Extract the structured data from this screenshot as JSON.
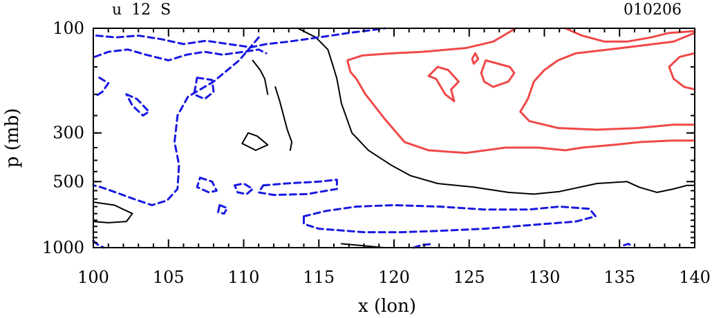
{
  "chart_data": {
    "type": "contour",
    "title_left": "u  12  S",
    "title_right": "010206",
    "xlabel": "x (lon)",
    "ylabel": "p (mb)",
    "xlim": [
      100,
      140
    ],
    "ylim": [
      1000,
      100
    ],
    "y_scale": "log",
    "x_ticks": [
      "100",
      "105",
      "110",
      "115",
      "120",
      "125",
      "130",
      "135",
      "140"
    ],
    "x_tick_values": [
      100,
      105,
      110,
      115,
      120,
      125,
      130,
      135,
      140
    ],
    "y_ticks": [
      "100",
      "300",
      "500",
      "1000"
    ],
    "y_tick_values": [
      100,
      300,
      500,
      1000
    ],
    "grid": false,
    "colors": {
      "positive": "#f04848",
      "zero": "#000000",
      "negative": "#1818e0"
    },
    "contours": [
      {
        "name": "zero",
        "color": "#000000",
        "dashed": false,
        "width": 2,
        "points": [
          [
            113.6,
            100
          ],
          [
            114.8,
            110
          ],
          [
            115.6,
            125
          ],
          [
            115.9,
            145
          ],
          [
            116.2,
            170
          ],
          [
            116.5,
            220
          ],
          [
            117.2,
            300
          ],
          [
            118.3,
            360
          ],
          [
            119.8,
            420
          ],
          [
            121.1,
            470
          ],
          [
            122.9,
            510
          ],
          [
            125.3,
            530
          ],
          [
            127.6,
            560
          ],
          [
            129.3,
            570
          ],
          [
            131,
            555
          ],
          [
            133.5,
            510
          ],
          [
            135.5,
            500
          ],
          [
            136.3,
            530
          ],
          [
            137.5,
            560
          ],
          [
            138.6,
            540
          ],
          [
            139.5,
            520
          ],
          [
            140,
            520
          ]
        ]
      },
      {
        "name": "zero",
        "color": "#000000",
        "dashed": false,
        "width": 2,
        "points": [
          [
            110.6,
            140
          ],
          [
            111.1,
            155
          ],
          [
            111.4,
            170
          ],
          [
            111.6,
            200
          ]
        ]
      },
      {
        "name": "zero",
        "color": "#000000",
        "dashed": false,
        "width": 2,
        "points": [
          [
            112.1,
            185
          ],
          [
            112.4,
            215
          ],
          [
            112.9,
            290
          ],
          [
            113.2,
            330
          ],
          [
            113.1,
            360
          ]
        ]
      },
      {
        "name": "zero",
        "color": "#000000",
        "dashed": false,
        "width": 2,
        "points": [
          [
            110.3,
            300
          ],
          [
            110.9,
            310
          ],
          [
            111.6,
            340
          ],
          [
            110.8,
            360
          ],
          [
            109.9,
            335
          ],
          [
            110.3,
            300
          ]
        ]
      },
      {
        "name": "zero",
        "color": "#000000",
        "dashed": false,
        "width": 2,
        "points": [
          [
            100,
            620
          ],
          [
            101.4,
            640
          ],
          [
            102.6,
            700
          ],
          [
            102.2,
            760
          ],
          [
            101,
            770
          ],
          [
            100,
            760
          ]
        ]
      },
      {
        "name": "zero",
        "color": "#000000",
        "dashed": false,
        "width": 2,
        "points": [
          [
            116.5,
            960
          ],
          [
            118.3,
            985
          ],
          [
            119.3,
            1000
          ]
        ]
      },
      {
        "name": "positive",
        "color": "#f04848",
        "dashed": false,
        "width": 3,
        "points": [
          [
            128.1,
            100
          ],
          [
            126.6,
            115
          ],
          [
            124.8,
            123
          ],
          [
            121.9,
            128
          ],
          [
            119.9,
            130
          ],
          [
            117.9,
            133
          ],
          [
            116.9,
            140
          ],
          [
            117.1,
            158
          ],
          [
            117.5,
            170
          ],
          [
            118.1,
            200
          ],
          [
            119.4,
            260
          ],
          [
            120.7,
            330
          ],
          [
            122.3,
            360
          ],
          [
            124.8,
            370
          ],
          [
            127.4,
            350
          ],
          [
            129.6,
            350
          ],
          [
            131.4,
            360
          ],
          [
            132.5,
            350
          ],
          [
            134.6,
            340
          ],
          [
            136.4,
            330
          ],
          [
            138.5,
            325
          ],
          [
            140,
            325
          ]
        ]
      },
      {
        "name": "positive",
        "color": "#f04848",
        "dashed": false,
        "width": 3,
        "points": [
          [
            140,
            105
          ],
          [
            138.6,
            115
          ],
          [
            136.4,
            120
          ],
          [
            134.3,
            125
          ],
          [
            132.1,
            130
          ],
          [
            130.9,
            140
          ],
          [
            130,
            155
          ],
          [
            129.3,
            175
          ],
          [
            128.9,
            210
          ],
          [
            128.4,
            240
          ],
          [
            129,
            265
          ],
          [
            130.9,
            285
          ],
          [
            133.5,
            290
          ],
          [
            136.2,
            285
          ],
          [
            138.6,
            275
          ],
          [
            140,
            275
          ]
        ]
      },
      {
        "name": "positive",
        "color": "#f04848",
        "dashed": false,
        "width": 3,
        "points": [
          [
            131.4,
            100
          ],
          [
            132.5,
            108
          ],
          [
            134,
            115
          ],
          [
            135.5,
            115
          ],
          [
            137.1,
            110
          ],
          [
            138.3,
            105
          ],
          [
            140,
            103
          ]
        ]
      },
      {
        "name": "positive",
        "color": "#f04848",
        "dashed": false,
        "width": 3,
        "points": [
          [
            140,
            130
          ],
          [
            139,
            135
          ],
          [
            138.3,
            150
          ],
          [
            138.6,
            170
          ],
          [
            139.3,
            185
          ],
          [
            140,
            190
          ]
        ]
      },
      {
        "name": "positive",
        "color": "#f04848",
        "dashed": false,
        "width": 3,
        "points": [
          [
            122.3,
            165
          ],
          [
            122.8,
            170
          ],
          [
            123.4,
            200
          ],
          [
            124,
            215
          ],
          [
            123.8,
            190
          ],
          [
            124.3,
            175
          ],
          [
            123.6,
            155
          ],
          [
            122.9,
            150
          ],
          [
            122.3,
            165
          ]
        ]
      },
      {
        "name": "positive",
        "color": "#f04848",
        "dashed": false,
        "width": 3,
        "points": [
          [
            126.1,
            140
          ],
          [
            127.7,
            150
          ],
          [
            128,
            160
          ],
          [
            127.6,
            175
          ],
          [
            126.6,
            185
          ],
          [
            126,
            175
          ],
          [
            125.8,
            160
          ],
          [
            126.1,
            140
          ]
        ]
      },
      {
        "name": "positive",
        "color": "#f04848",
        "dashed": false,
        "width": 3,
        "points": [
          [
            125.3,
            145
          ],
          [
            125.6,
            138
          ],
          [
            125.4,
            130
          ],
          [
            125.2,
            138
          ],
          [
            125.3,
            145
          ]
        ]
      },
      {
        "name": "negative",
        "color": "#1818e0",
        "dashed": true,
        "width": 3,
        "points": [
          [
            100.2,
            108
          ],
          [
            101.5,
            110
          ],
          [
            103,
            108
          ],
          [
            104.5,
            112
          ],
          [
            106,
            118
          ],
          [
            107.5,
            114
          ],
          [
            109,
            118
          ],
          [
            110.5,
            122
          ],
          [
            111.5,
            118
          ],
          [
            113,
            115
          ],
          [
            115,
            110
          ],
          [
            117,
            105
          ],
          [
            118.5,
            102
          ],
          [
            119.4,
            100
          ]
        ]
      },
      {
        "name": "negative",
        "color": "#1818e0",
        "dashed": true,
        "width": 3,
        "points": [
          [
            100.1,
            135
          ],
          [
            101,
            128
          ],
          [
            102.3,
            125
          ],
          [
            103.5,
            132
          ],
          [
            105,
            140
          ],
          [
            106.2,
            132
          ],
          [
            107.4,
            128
          ],
          [
            108.6,
            132
          ],
          [
            110,
            128
          ],
          [
            111,
            125
          ],
          [
            111.5,
            130
          ]
        ]
      },
      {
        "name": "negative",
        "color": "#1818e0",
        "dashed": true,
        "width": 3,
        "points": [
          [
            100.4,
            168
          ],
          [
            101,
            178
          ],
          [
            100.6,
            195
          ],
          [
            100.1,
            205
          ]
        ]
      },
      {
        "name": "negative",
        "color": "#1818e0",
        "dashed": true,
        "width": 3,
        "points": [
          [
            102.2,
            200
          ],
          [
            102.9,
            210
          ],
          [
            103.7,
            240
          ],
          [
            103.3,
            250
          ],
          [
            102.6,
            225
          ],
          [
            102.2,
            200
          ]
        ]
      },
      {
        "name": "negative",
        "color": "#1818e0",
        "dashed": true,
        "width": 3,
        "points": [
          [
            106.9,
            168
          ],
          [
            107.9,
            172
          ],
          [
            108,
            195
          ],
          [
            107.4,
            210
          ],
          [
            106.7,
            200
          ],
          [
            106.9,
            168
          ]
        ]
      },
      {
        "name": "negative",
        "color": "#1818e0",
        "dashed": true,
        "width": 3,
        "points": [
          [
            111,
            110
          ],
          [
            109.7,
            140
          ],
          [
            108,
            175
          ],
          [
            106.3,
            205
          ],
          [
            105.6,
            250
          ],
          [
            105.4,
            330
          ],
          [
            105.7,
            420
          ],
          [
            105.6,
            540
          ],
          [
            104.9,
            610
          ],
          [
            103.9,
            640
          ],
          [
            102.7,
            600
          ],
          [
            101.5,
            560
          ],
          [
            100.5,
            530
          ],
          [
            100,
            520
          ]
        ]
      },
      {
        "name": "negative",
        "color": "#1818e0",
        "dashed": true,
        "width": 3,
        "points": [
          [
            107.1,
            480
          ],
          [
            107.9,
            500
          ],
          [
            108.2,
            550
          ],
          [
            107.7,
            560
          ],
          [
            106.9,
            530
          ],
          [
            107.1,
            480
          ]
        ]
      },
      {
        "name": "negative",
        "color": "#1818e0",
        "dashed": true,
        "width": 3,
        "points": [
          [
            109.4,
            520
          ],
          [
            110,
            510
          ],
          [
            110.6,
            540
          ],
          [
            110.2,
            570
          ],
          [
            109.6,
            560
          ],
          [
            109.4,
            520
          ]
        ]
      },
      {
        "name": "negative",
        "color": "#1818e0",
        "dashed": true,
        "width": 3,
        "points": [
          [
            108.4,
            640
          ],
          [
            108.9,
            660
          ],
          [
            108.7,
            700
          ],
          [
            108.3,
            690
          ],
          [
            108.4,
            640
          ]
        ]
      },
      {
        "name": "negative",
        "color": "#1818e0",
        "dashed": true,
        "width": 3,
        "points": [
          [
            111.3,
            520
          ],
          [
            112.8,
            510
          ],
          [
            115,
            500
          ],
          [
            116.2,
            490
          ],
          [
            116.2,
            540
          ],
          [
            114.2,
            570
          ],
          [
            112,
            575
          ],
          [
            111,
            560
          ],
          [
            111.3,
            520
          ]
        ]
      },
      {
        "name": "negative",
        "color": "#1818e0",
        "dashed": true,
        "width": 3,
        "points": [
          [
            114,
            720
          ],
          [
            115.5,
            680
          ],
          [
            117.5,
            650
          ],
          [
            120,
            640
          ],
          [
            123,
            650
          ],
          [
            126,
            670
          ],
          [
            129,
            670
          ],
          [
            131,
            650
          ],
          [
            133,
            665
          ],
          [
            133.4,
            720
          ],
          [
            132.1,
            760
          ],
          [
            129,
            790
          ],
          [
            126,
            820
          ],
          [
            122.8,
            840
          ],
          [
            120.5,
            850
          ],
          [
            118,
            850
          ],
          [
            115,
            820
          ],
          [
            114,
            780
          ],
          [
            114,
            720
          ]
        ]
      },
      {
        "name": "negative",
        "color": "#1818e0",
        "dashed": true,
        "width": 3,
        "points": [
          [
            100,
            930
          ],
          [
            100.3,
            970
          ],
          [
            100.7,
            1000
          ]
        ]
      },
      {
        "name": "negative",
        "color": "#1818e0",
        "dashed": true,
        "width": 3,
        "points": [
          [
            121.3,
            1000
          ],
          [
            121.8,
            975
          ],
          [
            122.6,
            960
          ]
        ]
      },
      {
        "name": "negative",
        "color": "#1818e0",
        "dashed": true,
        "width": 3,
        "points": [
          [
            135.3,
            975
          ],
          [
            135.6,
            960
          ],
          [
            135.8,
            985
          ]
        ]
      }
    ]
  }
}
